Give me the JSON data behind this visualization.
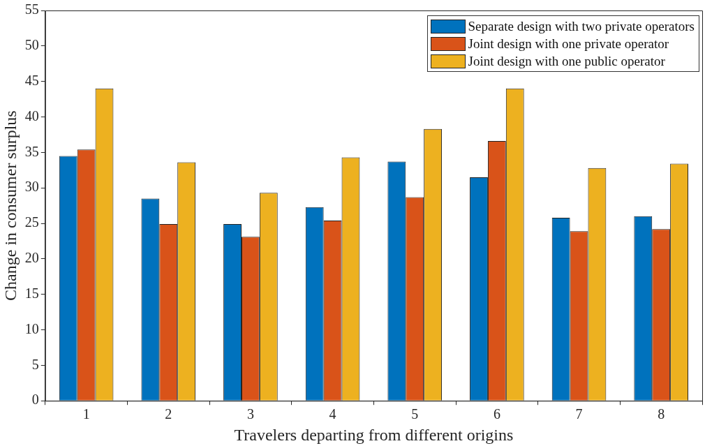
{
  "chart_data": {
    "type": "bar",
    "xlabel": "Travelers departing from different origins",
    "ylabel": "Change in consumer surplus",
    "categories": [
      "1",
      "2",
      "3",
      "4",
      "5",
      "6",
      "7",
      "8"
    ],
    "series": [
      {
        "name": "Separate design with two private operators",
        "color": "#0072bd",
        "values": [
          34.5,
          28.5,
          24.9,
          27.3,
          33.7,
          31.5,
          25.8,
          26.0
        ]
      },
      {
        "name": "Joint design with one private operator",
        "color": "#d95319",
        "values": [
          35.4,
          24.9,
          23.1,
          25.4,
          28.7,
          36.6,
          23.9,
          24.2
        ]
      },
      {
        "name": "Joint design with one public operator",
        "color": "#edb120",
        "values": [
          44.0,
          33.6,
          29.3,
          34.3,
          38.3,
          44.0,
          32.8,
          33.4
        ]
      }
    ],
    "ylim": [
      0,
      55
    ],
    "yticks": [
      0,
      5,
      10,
      15,
      20,
      25,
      30,
      35,
      40,
      45,
      50,
      55
    ],
    "grid": false,
    "legend": "top right"
  }
}
